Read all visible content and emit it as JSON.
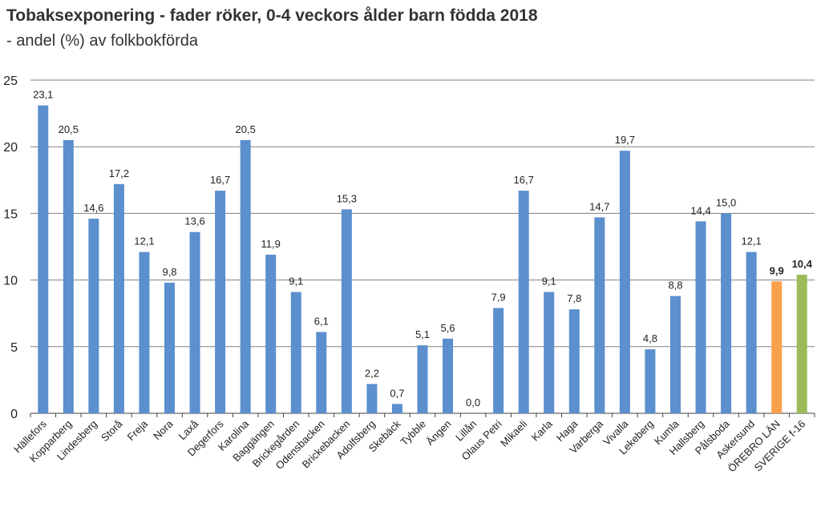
{
  "chart_data": {
    "type": "bar",
    "title": "Tobaksexponering - fader röker, 0-4 veckors ålder barn födda 2018",
    "subtitle": "- andel (%) av folkbokförda",
    "xlabel": "",
    "ylabel": "",
    "ylim": [
      0,
      25
    ],
    "yticks": [
      "0",
      "5",
      "10",
      "15",
      "20",
      "25"
    ],
    "grid": true,
    "categories": [
      "Hällefors",
      "Kopparberg",
      "Lindesberg",
      "Storå",
      "Freja",
      "Nora",
      "Laxå",
      "Degerfors",
      "Karolina",
      "Baggängen",
      "Brickegården",
      "Odensbacken",
      "Brickebacken",
      "Adolfsberg",
      "Skebäck",
      "Tybble",
      "Ängen",
      "Lillån",
      "Olaus Petri",
      "Mikaeli",
      "Karla",
      "Haga",
      "Varberga",
      "Vivalla",
      "Lekeberg",
      "Kumla",
      "Hallsberg",
      "Pålsboda",
      "Askersund",
      "ÖREBRO LÄN",
      "SVERIGE f-16"
    ],
    "values": [
      23.1,
      20.5,
      14.6,
      17.2,
      12.1,
      9.8,
      13.6,
      16.7,
      20.5,
      11.9,
      9.1,
      6.1,
      15.3,
      2.2,
      0.7,
      5.1,
      5.6,
      0.0,
      7.9,
      16.7,
      9.1,
      7.8,
      14.7,
      19.7,
      4.8,
      8.8,
      14.4,
      15.0,
      12.1,
      9.9,
      10.4
    ],
    "data_labels": [
      "23,1",
      "20,5",
      "14,6",
      "17,2",
      "12,1",
      "9,8",
      "13,6",
      "16,7",
      "20,5",
      "11,9",
      "9,1",
      "6,1",
      "15,3",
      "2,2",
      "0,7",
      "5,1",
      "5,6",
      "0,0",
      "7,9",
      "16,7",
      "9,1",
      "7,8",
      "14,7",
      "19,7",
      "4,8",
      "8,8",
      "14,4",
      "15,0",
      "12,1",
      "9,9",
      "10,4"
    ],
    "bold_labels": [
      29,
      30
    ],
    "colors": {
      "default": "#5B8FCE",
      "highlight": [
        "#F9A04B",
        "#9BBB59"
      ],
      "grid": "#808080",
      "axis": "#404040"
    }
  }
}
